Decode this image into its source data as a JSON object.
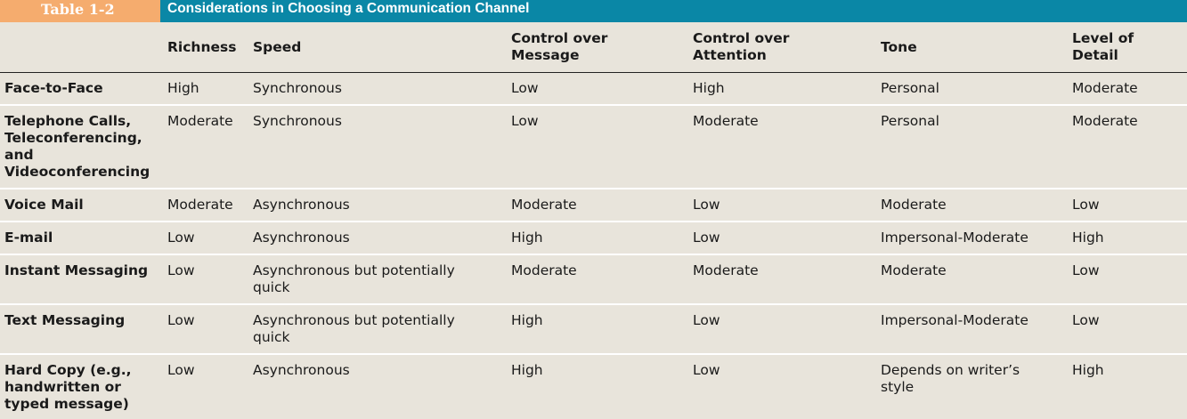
{
  "table_number": "Table 1-2",
  "caption": "Considerations in Choosing a Communication Channel",
  "columns": [
    "",
    "Richness",
    "Speed",
    "Control over Message",
    "Control over Attention",
    "Tone",
    "Level of Detail"
  ],
  "rows": [
    [
      "Face-to-Face",
      "High",
      "Synchronous",
      "Low",
      "High",
      "Personal",
      "Moderate"
    ],
    [
      "Telephone Calls, Teleconferencing, and Videoconferencing",
      "Moderate",
      "Synchronous",
      "Low",
      "Moderate",
      "Personal",
      "Moderate"
    ],
    [
      "Voice Mail",
      "Moderate",
      "Asynchronous",
      "Moderate",
      "Low",
      "Moderate",
      "Low"
    ],
    [
      "E-mail",
      "Low",
      "Asynchronous",
      "High",
      "Low",
      "Impersonal-Moderate",
      "High"
    ],
    [
      "Instant Messaging",
      "Low",
      "Asynchronous but potentially quick",
      "Moderate",
      "Moderate",
      "Moderate",
      "Low"
    ],
    [
      "Text Messaging",
      "Low",
      "Asynchronous but potentially quick",
      "High",
      "Low",
      "Impersonal-Moderate",
      "Low"
    ],
    [
      "Hard Copy (e.g., handwritten or typed message)",
      "Low",
      "Asynchronous",
      "High",
      "Low",
      "Depends on writer’s style",
      "High"
    ]
  ]
}
